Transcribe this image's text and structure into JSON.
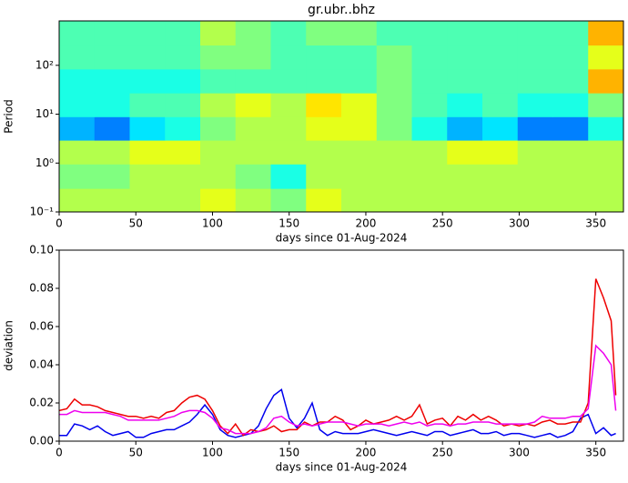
{
  "chart_data": [
    {
      "type": "heatmap",
      "title": "gr.ubr..bhz",
      "xlabel": "days since 01-Aug-2024",
      "ylabel": "Period",
      "log_y": true,
      "colormap": "jet",
      "xlim": [
        0,
        368
      ],
      "xticks": [
        0,
        50,
        100,
        150,
        200,
        250,
        300,
        350
      ],
      "ylim": [
        0.1,
        810
      ],
      "yticks": [
        {
          "value": 0.1,
          "label": "10⁻¹"
        },
        {
          "value": 1,
          "label": "10⁰"
        },
        {
          "value": 10,
          "label": "10¹"
        },
        {
          "value": 100,
          "label": "10²"
        }
      ],
      "x": [
        11.5,
        34.5,
        57.5,
        80.5,
        103.5,
        126.5,
        149.5,
        172.5,
        195.5,
        218.5,
        241.5,
        264.5,
        287.5,
        310.5,
        333.5,
        356.5
      ],
      "y": [
        0.17,
        0.54,
        1.7,
        5.1,
        15.5,
        48,
        148,
        457
      ],
      "z": [
        [
          0.55,
          0.55,
          0.55,
          0.55,
          0.6,
          0.55,
          0.5,
          0.6,
          0.55,
          0.55,
          0.55,
          0.55,
          0.55,
          0.55,
          0.55,
          0.55
        ],
        [
          0.5,
          0.5,
          0.55,
          0.55,
          0.55,
          0.5,
          0.4,
          0.55,
          0.55,
          0.55,
          0.55,
          0.55,
          0.55,
          0.55,
          0.55,
          0.55
        ],
        [
          0.55,
          0.55,
          0.6,
          0.6,
          0.55,
          0.55,
          0.55,
          0.55,
          0.55,
          0.55,
          0.55,
          0.6,
          0.6,
          0.55,
          0.55,
          0.55
        ],
        [
          0.3,
          0.25,
          0.35,
          0.4,
          0.5,
          0.55,
          0.55,
          0.6,
          0.6,
          0.5,
          0.4,
          0.3,
          0.35,
          0.25,
          0.25,
          0.4
        ],
        [
          0.4,
          0.4,
          0.45,
          0.45,
          0.55,
          0.6,
          0.55,
          0.65,
          0.6,
          0.5,
          0.45,
          0.4,
          0.45,
          0.4,
          0.4,
          0.5
        ],
        [
          0.4,
          0.4,
          0.4,
          0.4,
          0.45,
          0.45,
          0.45,
          0.45,
          0.45,
          0.5,
          0.45,
          0.45,
          0.45,
          0.45,
          0.45,
          0.7
        ],
        [
          0.45,
          0.45,
          0.45,
          0.45,
          0.5,
          0.5,
          0.45,
          0.45,
          0.45,
          0.5,
          0.45,
          0.45,
          0.45,
          0.45,
          0.45,
          0.6
        ],
        [
          0.45,
          0.45,
          0.45,
          0.45,
          0.55,
          0.5,
          0.45,
          0.5,
          0.5,
          0.45,
          0.45,
          0.45,
          0.45,
          0.45,
          0.45,
          0.7
        ]
      ]
    },
    {
      "type": "line",
      "xlabel": "days since 01-Aug-2024",
      "ylabel": "deviation",
      "xlim": [
        0,
        368
      ],
      "xticks": [
        0,
        50,
        100,
        150,
        200,
        250,
        300,
        350
      ],
      "ylim": [
        0,
        0.1
      ],
      "yticks": [
        {
          "value": 0,
          "label": "0.00"
        },
        {
          "value": 0.02,
          "label": "0.02"
        },
        {
          "value": 0.04,
          "label": "0.04"
        },
        {
          "value": 0.06,
          "label": "0.06"
        },
        {
          "value": 0.08,
          "label": "0.08"
        },
        {
          "value": 0.1,
          "label": "0.10"
        }
      ],
      "x": [
        0,
        5,
        10,
        15,
        20,
        25,
        30,
        35,
        40,
        45,
        50,
        55,
        60,
        65,
        70,
        75,
        80,
        85,
        90,
        95,
        100,
        105,
        110,
        115,
        120,
        125,
        130,
        135,
        140,
        145,
        150,
        155,
        160,
        165,
        170,
        175,
        180,
        185,
        190,
        195,
        200,
        205,
        210,
        215,
        220,
        225,
        230,
        235,
        240,
        245,
        250,
        255,
        260,
        265,
        270,
        275,
        280,
        285,
        290,
        295,
        300,
        305,
        310,
        315,
        320,
        325,
        330,
        335,
        340,
        345,
        350,
        355,
        360,
        363
      ],
      "series": [
        {
          "color": "#0000ee",
          "values": [
            0.003,
            0.003,
            0.009,
            0.008,
            0.006,
            0.008,
            0.005,
            0.003,
            0.004,
            0.005,
            0.002,
            0.002,
            0.004,
            0.005,
            0.006,
            0.006,
            0.008,
            0.01,
            0.014,
            0.019,
            0.014,
            0.006,
            0.003,
            0.002,
            0.003,
            0.004,
            0.008,
            0.017,
            0.024,
            0.027,
            0.012,
            0.007,
            0.012,
            0.02,
            0.006,
            0.003,
            0.005,
            0.004,
            0.004,
            0.004,
            0.005,
            0.006,
            0.005,
            0.004,
            0.003,
            0.004,
            0.005,
            0.004,
            0.003,
            0.005,
            0.005,
            0.003,
            0.004,
            0.005,
            0.006,
            0.004,
            0.004,
            0.005,
            0.003,
            0.004,
            0.004,
            0.003,
            0.002,
            0.003,
            0.004,
            0.002,
            0.003,
            0.005,
            0.012,
            0.014,
            0.004,
            0.007,
            0.003,
            0.004
          ]
        },
        {
          "color": "#ee0000",
          "values": [
            0.016,
            0.017,
            0.022,
            0.019,
            0.019,
            0.018,
            0.016,
            0.015,
            0.014,
            0.013,
            0.013,
            0.012,
            0.013,
            0.012,
            0.015,
            0.016,
            0.02,
            0.023,
            0.024,
            0.022,
            0.016,
            0.008,
            0.004,
            0.009,
            0.003,
            0.006,
            0.005,
            0.006,
            0.008,
            0.005,
            0.006,
            0.006,
            0.01,
            0.008,
            0.01,
            0.01,
            0.013,
            0.011,
            0.006,
            0.008,
            0.011,
            0.009,
            0.01,
            0.011,
            0.013,
            0.011,
            0.013,
            0.019,
            0.009,
            0.011,
            0.012,
            0.008,
            0.013,
            0.011,
            0.014,
            0.011,
            0.013,
            0.011,
            0.008,
            0.009,
            0.008,
            0.009,
            0.008,
            0.01,
            0.011,
            0.009,
            0.009,
            0.01,
            0.01,
            0.02,
            0.085,
            0.075,
            0.063,
            0.024
          ]
        },
        {
          "color": "#ee00ee",
          "values": [
            0.014,
            0.014,
            0.016,
            0.015,
            0.015,
            0.015,
            0.015,
            0.014,
            0.013,
            0.011,
            0.011,
            0.011,
            0.011,
            0.011,
            0.012,
            0.013,
            0.015,
            0.016,
            0.016,
            0.015,
            0.012,
            0.007,
            0.006,
            0.004,
            0.004,
            0.004,
            0.005,
            0.007,
            0.012,
            0.013,
            0.01,
            0.008,
            0.009,
            0.008,
            0.009,
            0.01,
            0.01,
            0.01,
            0.009,
            0.008,
            0.009,
            0.009,
            0.009,
            0.008,
            0.009,
            0.01,
            0.009,
            0.01,
            0.008,
            0.009,
            0.009,
            0.008,
            0.009,
            0.009,
            0.01,
            0.01,
            0.01,
            0.009,
            0.009,
            0.009,
            0.009,
            0.009,
            0.01,
            0.013,
            0.012,
            0.012,
            0.012,
            0.013,
            0.013,
            0.017,
            0.05,
            0.046,
            0.04,
            0.016
          ]
        }
      ]
    }
  ]
}
